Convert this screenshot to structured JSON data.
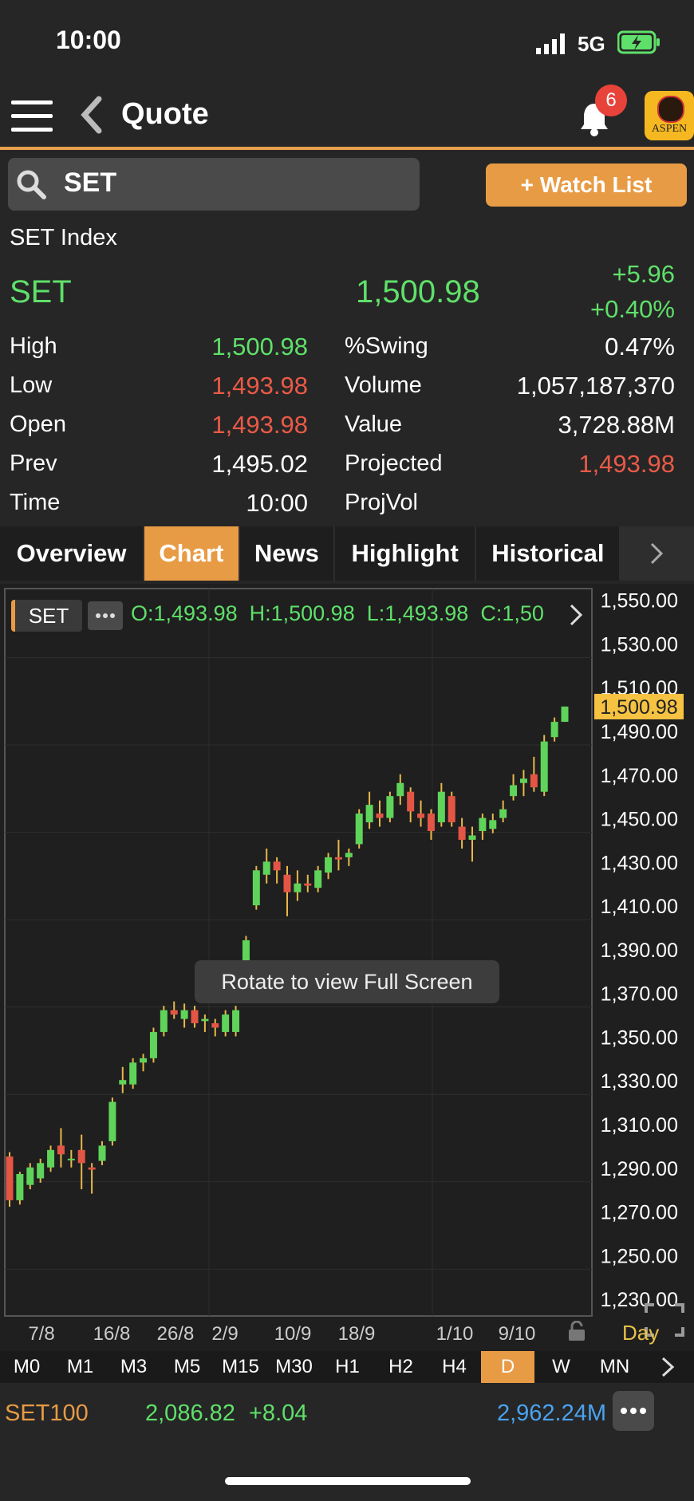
{
  "status": {
    "time": "10:00",
    "network": "5G"
  },
  "nav": {
    "title": "Quote",
    "notification_count": "6",
    "logo_text": "ASPEN"
  },
  "search": {
    "value": "SET",
    "watch_label": "+ Watch List"
  },
  "quote": {
    "name": "SET Index",
    "symbol": "SET",
    "last": "1,500.98",
    "change": "+5.96",
    "change_pct": "+0.40%",
    "left": [
      {
        "label": "High",
        "value": "1,500.98",
        "color": "#5fe06a"
      },
      {
        "label": "Low",
        "value": "1,493.98",
        "color": "#ea5a47"
      },
      {
        "label": "Open",
        "value": "1,493.98",
        "color": "#ea5a47"
      },
      {
        "label": "Prev",
        "value": "1,495.02",
        "color": "#ffffff"
      },
      {
        "label": "Time",
        "value": "10:00",
        "color": "#ffffff"
      }
    ],
    "right": [
      {
        "label": "%Swing",
        "value": "0.47%",
        "color": "#ffffff"
      },
      {
        "label": "Volume",
        "value": "1,057,187,370",
        "color": "#ffffff"
      },
      {
        "label": "Value",
        "value": "3,728.88M",
        "color": "#ffffff"
      },
      {
        "label": "Projected",
        "value": "1,493.98",
        "color": "#ea5a47"
      },
      {
        "label": "ProjVol",
        "value": "",
        "color": "#ffffff"
      }
    ]
  },
  "tabs": [
    "Overview",
    "Chart",
    "News",
    "Highlight",
    "Historical"
  ],
  "active_tab": "Chart",
  "chart_info": {
    "symbol": "SET",
    "ohlc": "O:1,493.98  H:1,500.98  L:1,493.98  C:1,50",
    "toast": "Rotate to view Full Screen",
    "interval_label": "Day"
  },
  "chart_data": {
    "type": "candlestick",
    "y_ticks": [
      "1,550.00",
      "1,530.00",
      "1,510.00",
      "1,490.00",
      "1,470.00",
      "1,450.00",
      "1,430.00",
      "1,410.00",
      "1,390.00",
      "1,370.00",
      "1,350.00",
      "1,330.00",
      "1,310.00",
      "1,290.00",
      "1,270.00",
      "1,250.00",
      "1,230.00"
    ],
    "ylim": [
      1222,
      1555
    ],
    "x_ticks": [
      "7/8",
      "16/8",
      "26/8",
      "2/9",
      "10/9",
      "18/9",
      "1/10",
      "9/10"
    ],
    "last_price_label": "1,500.98",
    "candles": [
      {
        "o": 1295,
        "h": 1297,
        "l": 1272,
        "c": 1275
      },
      {
        "o": 1275,
        "h": 1288,
        "l": 1273,
        "c": 1287
      },
      {
        "o": 1282,
        "h": 1292,
        "l": 1280,
        "c": 1290
      },
      {
        "o": 1285,
        "h": 1294,
        "l": 1283,
        "c": 1292
      },
      {
        "o": 1290,
        "h": 1300,
        "l": 1288,
        "c": 1298
      },
      {
        "o": 1300,
        "h": 1308,
        "l": 1290,
        "c": 1296
      },
      {
        "o": 1294,
        "h": 1298,
        "l": 1290,
        "c": 1294
      },
      {
        "o": 1298,
        "h": 1305,
        "l": 1280,
        "c": 1292
      },
      {
        "o": 1290,
        "h": 1292,
        "l": 1278,
        "c": 1289
      },
      {
        "o": 1293,
        "h": 1302,
        "l": 1291,
        "c": 1300
      },
      {
        "o": 1302,
        "h": 1322,
        "l": 1300,
        "c": 1320
      },
      {
        "o": 1328,
        "h": 1336,
        "l": 1324,
        "c": 1330
      },
      {
        "o": 1328,
        "h": 1340,
        "l": 1326,
        "c": 1338
      },
      {
        "o": 1338,
        "h": 1342,
        "l": 1334,
        "c": 1340
      },
      {
        "o": 1340,
        "h": 1354,
        "l": 1338,
        "c": 1352
      },
      {
        "o": 1352,
        "h": 1364,
        "l": 1350,
        "c": 1362
      },
      {
        "o": 1362,
        "h": 1366,
        "l": 1358,
        "c": 1360
      },
      {
        "o": 1358,
        "h": 1365,
        "l": 1354,
        "c": 1362
      },
      {
        "o": 1362,
        "h": 1364,
        "l": 1354,
        "c": 1356
      },
      {
        "o": 1357,
        "h": 1360,
        "l": 1352,
        "c": 1358
      },
      {
        "o": 1356,
        "h": 1358,
        "l": 1350,
        "c": 1354
      },
      {
        "o": 1352,
        "h": 1362,
        "l": 1350,
        "c": 1360
      },
      {
        "o": 1352,
        "h": 1364,
        "l": 1350,
        "c": 1362
      },
      {
        "o": 1370,
        "h": 1396,
        "l": 1368,
        "c": 1394
      },
      {
        "o": 1410,
        "h": 1428,
        "l": 1408,
        "c": 1426
      },
      {
        "o": 1424,
        "h": 1436,
        "l": 1420,
        "c": 1430
      },
      {
        "o": 1430,
        "h": 1432,
        "l": 1420,
        "c": 1426
      },
      {
        "o": 1424,
        "h": 1428,
        "l": 1405,
        "c": 1416
      },
      {
        "o": 1416,
        "h": 1426,
        "l": 1412,
        "c": 1420
      },
      {
        "o": 1420,
        "h": 1424,
        "l": 1416,
        "c": 1419
      },
      {
        "o": 1418,
        "h": 1428,
        "l": 1416,
        "c": 1426
      },
      {
        "o": 1425,
        "h": 1434,
        "l": 1422,
        "c": 1432
      },
      {
        "o": 1432,
        "h": 1440,
        "l": 1426,
        "c": 1431
      },
      {
        "o": 1432,
        "h": 1436,
        "l": 1428,
        "c": 1434
      },
      {
        "o": 1438,
        "h": 1454,
        "l": 1436,
        "c": 1452
      },
      {
        "o": 1448,
        "h": 1462,
        "l": 1445,
        "c": 1456
      },
      {
        "o": 1452,
        "h": 1458,
        "l": 1446,
        "c": 1450
      },
      {
        "o": 1450,
        "h": 1462,
        "l": 1448,
        "c": 1460
      },
      {
        "o": 1460,
        "h": 1470,
        "l": 1456,
        "c": 1466
      },
      {
        "o": 1462,
        "h": 1464,
        "l": 1448,
        "c": 1453
      },
      {
        "o": 1452,
        "h": 1458,
        "l": 1446,
        "c": 1450
      },
      {
        "o": 1452,
        "h": 1454,
        "l": 1440,
        "c": 1444
      },
      {
        "o": 1448,
        "h": 1466,
        "l": 1446,
        "c": 1462
      },
      {
        "o": 1460,
        "h": 1462,
        "l": 1446,
        "c": 1448
      },
      {
        "o": 1446,
        "h": 1450,
        "l": 1436,
        "c": 1440
      },
      {
        "o": 1440,
        "h": 1446,
        "l": 1430,
        "c": 1442
      },
      {
        "o": 1444,
        "h": 1452,
        "l": 1440,
        "c": 1450
      },
      {
        "o": 1445,
        "h": 1452,
        "l": 1443,
        "c": 1449
      },
      {
        "o": 1450,
        "h": 1458,
        "l": 1448,
        "c": 1454
      },
      {
        "o": 1460,
        "h": 1470,
        "l": 1458,
        "c": 1465
      },
      {
        "o": 1466,
        "h": 1472,
        "l": 1460,
        "c": 1468
      },
      {
        "o": 1470,
        "h": 1478,
        "l": 1462,
        "c": 1464
      },
      {
        "o": 1462,
        "h": 1488,
        "l": 1460,
        "c": 1485
      },
      {
        "o": 1487,
        "h": 1496,
        "l": 1485,
        "c": 1494
      },
      {
        "o": 1494,
        "h": 1501,
        "l": 1494,
        "c": 1501
      }
    ]
  },
  "timeframes": [
    "M0",
    "M1",
    "M3",
    "M5",
    "M15",
    "M30",
    "H1",
    "H2",
    "H4",
    "D",
    "W",
    "MN"
  ],
  "active_timeframe": "D",
  "ticker": {
    "symbol": "SET100",
    "last": "2,086.82",
    "change": "+8.04",
    "value": "2,962.24M"
  }
}
